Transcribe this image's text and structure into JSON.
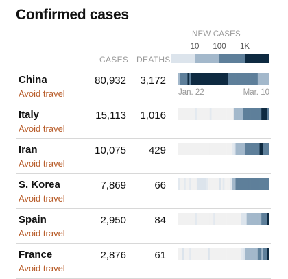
{
  "title": "Confirmed cases",
  "legend": {
    "title": "NEW CASES",
    "ticks": [
      "10",
      "100",
      "1K"
    ],
    "bins": [
      {
        "from": 0,
        "to": 10,
        "color": "#dce4ec"
      },
      {
        "from": 10,
        "to": 100,
        "color": "#a3b8cb"
      },
      {
        "from": 100,
        "to": 1000,
        "color": "#5e7f9a"
      },
      {
        "from": 1000,
        "to": null,
        "color": "#0e2a41"
      }
    ]
  },
  "columns": {
    "cases": "CASES",
    "deaths": "DEATHS"
  },
  "date_range": {
    "start": "Jan. 22",
    "end": "Mar. 10"
  },
  "chart_data": {
    "type": "heatmap",
    "title": "Confirmed cases",
    "value_label": "New cases per day",
    "scale": "log",
    "days": 49,
    "rows": [
      {
        "country": "China",
        "advice": "Avoid travel",
        "cases": "80,932",
        "deaths": "3,172",
        "daily_new": [
          95,
          277,
          486,
          669,
          802,
          2632,
          578,
          2054,
          1661,
          2089,
          4739,
          3086,
          3991,
          3733,
          3147,
          3523,
          2652,
          2973,
          2467,
          2015,
          15152,
          5090,
          2641,
          2008,
          2048,
          1888,
          1749,
          394,
          889,
          823,
          648,
          214,
          508,
          406,
          433,
          327,
          427,
          573,
          202,
          125,
          119,
          139,
          143,
          99,
          44,
          99,
          40,
          19,
          24
        ]
      },
      {
        "country": "Italy",
        "advice": "Avoid travel",
        "cases": "15,113",
        "deaths": "1,016",
        "daily_new": [
          0,
          0,
          0,
          0,
          0,
          0,
          0,
          0,
          0,
          2,
          0,
          0,
          0,
          0,
          0,
          0,
          0,
          1,
          0,
          0,
          0,
          0,
          0,
          0,
          0,
          0,
          0,
          0,
          0,
          0,
          17,
          42,
          93,
          74,
          93,
          131,
          202,
          233,
          240,
          566,
          342,
          466,
          587,
          769,
          778,
          1247,
          1492,
          1797,
          977
        ]
      },
      {
        "country": "Iran",
        "advice": "Avoid travel",
        "cases": "10,075",
        "deaths": "429",
        "daily_new": [
          0,
          0,
          0,
          0,
          0,
          0,
          0,
          0,
          0,
          0,
          0,
          0,
          0,
          0,
          0,
          0,
          0,
          0,
          0,
          0,
          0,
          0,
          0,
          0,
          0,
          0,
          0,
          0,
          0,
          2,
          3,
          13,
          10,
          15,
          34,
          44,
          106,
          143,
          205,
          385,
          523,
          835,
          586,
          591,
          1234,
          1076,
          743,
          595,
          881
        ]
      },
      {
        "country": "S. Korea",
        "advice": "Avoid travel",
        "cases": "7,869",
        "deaths": "66",
        "daily_new": [
          1,
          0,
          0,
          1,
          0,
          0,
          2,
          0,
          0,
          0,
          7,
          4,
          3,
          4,
          3,
          1,
          0,
          0,
          0,
          0,
          0,
          0,
          3,
          0,
          1,
          0,
          0,
          0,
          1,
          20,
          53,
          100,
          229,
          169,
          231,
          144,
          284,
          505,
          571,
          813,
          586,
          599,
          851,
          435,
          516,
          438,
          518,
          483,
          367
        ]
      },
      {
        "country": "Spain",
        "advice": "Avoid travel",
        "cases": "2,950",
        "deaths": "84",
        "daily_new": [
          0,
          0,
          0,
          0,
          0,
          0,
          0,
          0,
          0,
          1,
          0,
          0,
          0,
          0,
          0,
          0,
          0,
          0,
          0,
          1,
          0,
          0,
          0,
          0,
          0,
          0,
          0,
          0,
          0,
          0,
          0,
          0,
          0,
          0,
          4,
          5,
          3,
          13,
          17,
          30,
          39,
          40,
          28,
          41,
          57,
          136,
          159,
          625,
          1762
        ]
      },
      {
        "country": "France",
        "advice": "Avoid travel",
        "cases": "2,876",
        "deaths": "61",
        "daily_new": [
          0,
          0,
          3,
          0,
          0,
          0,
          1,
          0,
          0,
          0,
          0,
          0,
          0,
          0,
          0,
          0,
          5,
          0,
          0,
          0,
          0,
          0,
          0,
          0,
          0,
          0,
          0,
          0,
          0,
          0,
          0,
          0,
          0,
          0,
          2,
          4,
          20,
          19,
          43,
          30,
          61,
          25,
          73,
          138,
          193,
          93,
          413,
          410,
          1036
        ]
      }
    ]
  }
}
